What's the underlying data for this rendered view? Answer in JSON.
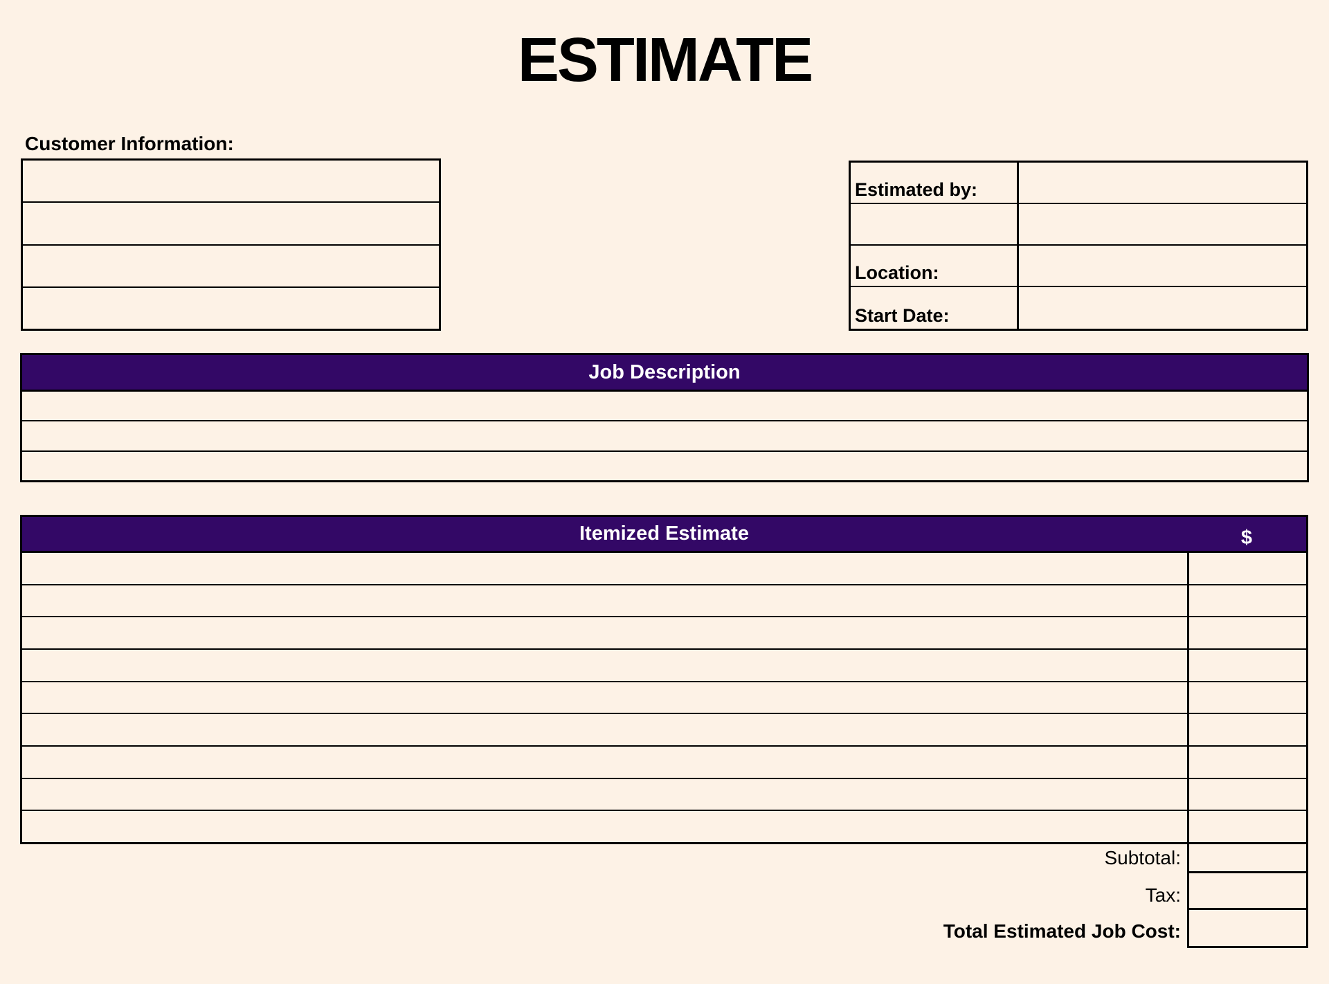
{
  "page": {
    "background_color": "#FDF2E6",
    "accent_color": "#330866",
    "line_color": "#000000",
    "bar_text_color": "#FFFFFF"
  },
  "title": "ESTIMATE",
  "customer_info": {
    "label": "Customer Information:",
    "row_count": 4
  },
  "estimate_info": {
    "rows": [
      {
        "label": "Estimated by:",
        "value": ""
      },
      {
        "label": "",
        "value": ""
      },
      {
        "label": "Location:",
        "value": ""
      },
      {
        "label": "Start Date:",
        "value": ""
      }
    ]
  },
  "job_description": {
    "header": "Job Description",
    "row_count": 3
  },
  "itemized_estimate": {
    "header": "Itemized Estimate",
    "amount_header": "$",
    "row_count": 9
  },
  "totals": [
    {
      "label": "Subtotal:",
      "value": ""
    },
    {
      "label": "Tax:",
      "value": ""
    },
    {
      "label": "Total Estimated Job Cost:",
      "value": ""
    }
  ]
}
